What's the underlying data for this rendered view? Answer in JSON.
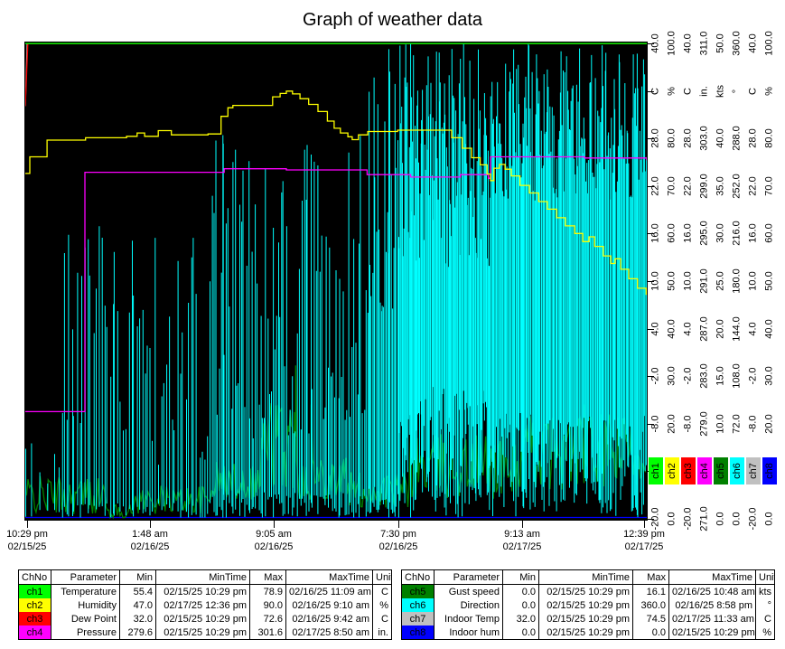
{
  "window": {
    "title": "Graph of weather data"
  },
  "chart_data": {
    "type": "line",
    "title": "Graph of weather data",
    "plot_bg": "#000000",
    "x_axis": {
      "ticks": [
        {
          "time": "10:29 pm",
          "date": "02/15/25",
          "frac": 0.003
        },
        {
          "time": "1:48 am",
          "date": "02/16/25",
          "frac": 0.2
        },
        {
          "time": "9:05 am",
          "date": "02/16/25",
          "frac": 0.4
        },
        {
          "time": "7:30 pm",
          "date": "02/16/25",
          "frac": 0.6
        },
        {
          "time": "9:13 am",
          "date": "02/17/25",
          "frac": 0.8
        },
        {
          "time": "12:39 pm",
          "date": "02/17/25",
          "frac": 0.996
        }
      ]
    },
    "right_axis": {
      "rows": 11,
      "unit_row_index": 1,
      "legend_row_index": 9,
      "columns": [
        {
          "channel": "ch1",
          "unit": "C",
          "color": "#00ff00",
          "tick_labels": [
            "40.0",
            "28.0",
            "22.0",
            "16.0",
            "10.0",
            "4.0",
            "-2.0",
            "-8.0",
            "-20.0"
          ]
        },
        {
          "channel": "ch2",
          "unit": "%",
          "color": "#ffff00",
          "tick_labels": [
            "100.0",
            "80.0",
            "70.0",
            "60.0",
            "50.0",
            "40.0",
            "30.0",
            "20.0",
            "0.0"
          ]
        },
        {
          "channel": "ch3",
          "unit": "C",
          "color": "#ff0000",
          "tick_labels": [
            "40.0",
            "28.0",
            "22.0",
            "16.0",
            "10.0",
            "4.0",
            "-2.0",
            "-8.0",
            "-20.0"
          ]
        },
        {
          "channel": "ch4",
          "unit": "in.",
          "color": "#ff00ff",
          "tick_labels": [
            "311.0",
            "303.0",
            "299.0",
            "295.0",
            "291.0",
            "287.0",
            "283.0",
            "279.0",
            "271.0"
          ]
        },
        {
          "channel": "ch5",
          "unit": "kts",
          "color": "#008000",
          "tick_labels": [
            "50.0",
            "40.0",
            "35.0",
            "30.0",
            "25.0",
            "20.0",
            "15.0",
            "10.0",
            "0.0"
          ]
        },
        {
          "channel": "ch6",
          "unit": "°",
          "color": "#00ffff",
          "tick_labels": [
            "360.0",
            "288.0",
            "252.0",
            "216.0",
            "180.0",
            "144.0",
            "108.0",
            "72.0",
            "0.0"
          ]
        },
        {
          "channel": "ch7",
          "unit": "C",
          "color": "#c0c0c0",
          "tick_labels": [
            "40.0",
            "28.0",
            "22.0",
            "16.0",
            "10.0",
            "4.0",
            "-2.0",
            "-8.0",
            "-20.0"
          ]
        },
        {
          "channel": "ch8",
          "unit": "%",
          "color": "#0000ff",
          "tick_labels": [
            "100.0",
            "80.0",
            "70.0",
            "60.0",
            "50.0",
            "40.0",
            "30.0",
            "20.0",
            "0.0"
          ]
        }
      ]
    },
    "series": [
      {
        "id": "ch8",
        "label": "Indoor hum",
        "unit": "%",
        "color": "#0000ff",
        "axis_min": 0,
        "axis_max": 100,
        "style": "line",
        "points": [
          [
            0,
            0
          ],
          [
            1,
            0
          ]
        ]
      },
      {
        "id": "ch7",
        "label": "Indoor Temp",
        "unit": "C",
        "color": "#c0c0c0",
        "axis_min": -20,
        "axis_max": 40,
        "style": "line",
        "points": [
          [
            0,
            32.0
          ],
          [
            0.003,
            74.5
          ],
          [
            1,
            74.5
          ]
        ]
      },
      {
        "id": "ch3",
        "label": "Dew Point",
        "unit": "C",
        "color": "#ff0000",
        "axis_min": -20,
        "axis_max": 40,
        "style": "line",
        "points": [
          [
            0,
            32.0
          ],
          [
            0.004,
            72.6
          ],
          [
            1,
            72.6
          ]
        ]
      },
      {
        "id": "ch5",
        "label": "Gust speed",
        "unit": "kts",
        "color": "#008000",
        "axis_min": 0,
        "axis_max": 50,
        "style": "noise",
        "noise_regions": [
          {
            "x0": 0.0,
            "x1": 0.13,
            "n": 60,
            "lo": 0.5,
            "hi": 4.5
          },
          {
            "x0": 0.13,
            "x1": 0.175,
            "n": 20,
            "lo": 0.0,
            "hi": 1.5
          },
          {
            "x0": 0.175,
            "x1": 0.3,
            "n": 55,
            "lo": 0.5,
            "hi": 3.5
          },
          {
            "x0": 0.3,
            "x1": 0.38,
            "n": 40,
            "lo": 2.0,
            "hi": 6.0
          },
          {
            "x0": 0.38,
            "x1": 0.44,
            "n": 35,
            "lo": 3.0,
            "hi": 13.0
          },
          {
            "x0": 0.44,
            "x1": 0.52,
            "n": 40,
            "lo": 2.0,
            "hi": 7.0
          },
          {
            "x0": 0.52,
            "x1": 0.62,
            "n": 45,
            "lo": 1.0,
            "hi": 5.0
          },
          {
            "x0": 0.62,
            "x1": 0.8,
            "n": 85,
            "lo": 2.0,
            "hi": 9.0
          },
          {
            "x0": 0.8,
            "x1": 1.0,
            "n": 95,
            "lo": 3.0,
            "hi": 11.0
          }
        ],
        "notable_spikes": [
          [
            0.435,
            16.1
          ],
          [
            0.46,
            12.0
          ],
          [
            0.9,
            12.0
          ]
        ]
      },
      {
        "id": "ch6",
        "label": "Direction",
        "unit": "°",
        "color": "#00ffff",
        "axis_min": 0,
        "axis_max": 360,
        "style": "spikes",
        "spike_regions": [
          {
            "x0": 0.0,
            "x1": 0.06,
            "n": 6,
            "lo": [
              0,
              8
            ],
            "hi": [
              15,
              60
            ]
          },
          {
            "x0": 0.06,
            "x1": 0.3,
            "n": 55,
            "lo": [
              0,
              12
            ],
            "hi": [
              40,
              230
            ]
          },
          {
            "x0": 0.3,
            "x1": 0.55,
            "n": 90,
            "lo": [
              0,
              20
            ],
            "hi": [
              60,
              290
            ]
          },
          {
            "x0": 0.55,
            "x1": 0.6,
            "n": 25,
            "lo": [
              0,
              25
            ],
            "hi": [
              150,
              340
            ]
          },
          {
            "x0": 0.6,
            "x1": 0.75,
            "n": 120,
            "lo": [
              0,
              100
            ],
            "hi": [
              190,
              360
            ]
          },
          {
            "x0": 0.75,
            "x1": 1.0,
            "n": 170,
            "lo": [
              0,
              80
            ],
            "hi": [
              240,
              360
            ]
          }
        ],
        "notable_spikes": [
          [
            0.318,
            0,
            290
          ],
          [
            0.06,
            0,
            80
          ],
          [
            0.585,
            0,
            355
          ],
          [
            0.62,
            0,
            360
          ]
        ]
      },
      {
        "id": "ch4",
        "label": "Pressure",
        "unit": "in.",
        "color": "#ff00ff",
        "axis_min": 271,
        "axis_max": 311,
        "style": "step",
        "points": [
          [
            0,
            280.0
          ],
          [
            0.094,
            280.0
          ],
          [
            0.096,
            300.1
          ],
          [
            0.13,
            300.1
          ],
          [
            0.32,
            300.4
          ],
          [
            0.42,
            300.3
          ],
          [
            0.55,
            299.9
          ],
          [
            0.62,
            299.7
          ],
          [
            0.7,
            299.9
          ],
          [
            0.745,
            299.6
          ],
          [
            0.7485,
            301.4
          ],
          [
            0.8,
            301.4
          ],
          [
            0.9,
            301.3
          ],
          [
            1,
            301.1
          ]
        ]
      },
      {
        "id": "ch2",
        "label": "Humidity",
        "unit": "%",
        "color": "#ffff00",
        "axis_min": 0,
        "axis_max": 100,
        "style": "step",
        "points": [
          [
            0,
            72.5
          ],
          [
            0.0073,
            76
          ],
          [
            0.035,
            79.5
          ],
          [
            0.097,
            80
          ],
          [
            0.163,
            80.3
          ],
          [
            0.18,
            81
          ],
          [
            0.192,
            80.3
          ],
          [
            0.214,
            81.5
          ],
          [
            0.235,
            80.6
          ],
          [
            0.294,
            80.8
          ],
          [
            0.315,
            84.5
          ],
          [
            0.326,
            86.3
          ],
          [
            0.334,
            86.8
          ],
          [
            0.388,
            86.8
          ],
          [
            0.398,
            88.6
          ],
          [
            0.41,
            89.3
          ],
          [
            0.42,
            89.8
          ],
          [
            0.43,
            89.2
          ],
          [
            0.442,
            88.2
          ],
          [
            0.456,
            87
          ],
          [
            0.471,
            85.5
          ],
          [
            0.486,
            83.5
          ],
          [
            0.497,
            82
          ],
          [
            0.507,
            81
          ],
          [
            0.519,
            80.2
          ],
          [
            0.526,
            79.6
          ],
          [
            0.536,
            80.6
          ],
          [
            0.551,
            81.3
          ],
          [
            0.599,
            81.6
          ],
          [
            0.671,
            81.6
          ],
          [
            0.686,
            80
          ],
          [
            0.703,
            77.8
          ],
          [
            0.718,
            75.8
          ],
          [
            0.732,
            74.3
          ],
          [
            0.743,
            72.4
          ],
          [
            0.7485,
            71
          ],
          [
            0.754,
            73.6
          ],
          [
            0.763,
            74.4
          ],
          [
            0.772,
            73.4
          ],
          [
            0.782,
            72
          ],
          [
            0.796,
            70
          ],
          [
            0.811,
            68.4
          ],
          [
            0.826,
            66.6
          ],
          [
            0.84,
            65
          ],
          [
            0.855,
            63.2
          ],
          [
            0.869,
            61.5
          ],
          [
            0.884,
            59.9
          ],
          [
            0.897,
            58.2
          ],
          [
            0.907,
            59.2
          ],
          [
            0.916,
            57.2
          ],
          [
            0.93,
            55.2
          ],
          [
            0.942,
            53.6
          ],
          [
            0.949,
            54.6
          ],
          [
            0.958,
            52.4
          ],
          [
            0.971,
            50.4
          ],
          [
            0.985,
            48.4
          ],
          [
            0.999,
            47
          ]
        ]
      },
      {
        "id": "ch1",
        "label": "Temperature",
        "unit": "C",
        "color": "#00ff00",
        "axis_min": -20,
        "axis_max": 40,
        "style": "line",
        "points": [
          [
            0,
            55.4
          ],
          [
            0.55,
            78.9
          ],
          [
            1,
            60.0
          ]
        ]
      }
    ]
  },
  "tables": {
    "columns": [
      "ChNo",
      "Parameter",
      "Min",
      "MinTime",
      "Max",
      "MaxTime",
      "Unit"
    ],
    "left": {
      "rows": [
        {
          "ch": "ch1",
          "color": "#00ff00",
          "parameter": "Temperature",
          "min": "55.4",
          "min_time": "02/15/25 10:29 pm",
          "max": "78.9",
          "max_time": "02/16/25 11:09 am",
          "unit": "C"
        },
        {
          "ch": "ch2",
          "color": "#ffff00",
          "parameter": "Humidity",
          "min": "47.0",
          "min_time": "02/17/25 12:36 pm",
          "max": "90.0",
          "max_time": "02/16/25 9:10 am",
          "unit": "%"
        },
        {
          "ch": "ch3",
          "color": "#ff0000",
          "parameter": "Dew Point",
          "min": "32.0",
          "min_time": "02/15/25 10:29 pm",
          "max": "72.6",
          "max_time": "02/16/25 9:42 am",
          "unit": "C"
        },
        {
          "ch": "ch4",
          "color": "#ff00ff",
          "parameter": "Pressure",
          "min": "279.6",
          "min_time": "02/15/25 10:29 pm",
          "max": "301.6",
          "max_time": "02/17/25 8:50 am",
          "unit": "in."
        }
      ]
    },
    "right": {
      "rows": [
        {
          "ch": "ch5",
          "color": "#008000",
          "parameter": "Gust speed",
          "min": "0.0",
          "min_time": "02/15/25 10:29 pm",
          "max": "16.1",
          "max_time": "02/16/25 10:48 am",
          "unit": "kts"
        },
        {
          "ch": "ch6",
          "color": "#00ffff",
          "parameter": "Direction",
          "min": "0.0",
          "min_time": "02/15/25 10:29 pm",
          "max": "360.0",
          "max_time": "02/16/25 8:58 pm",
          "unit": "°"
        },
        {
          "ch": "ch7",
          "color": "#c0c0c0",
          "parameter": "Indoor Temp",
          "min": "32.0",
          "min_time": "02/15/25 10:29 pm",
          "max": "74.5",
          "max_time": "02/17/25 11:33 am",
          "unit": "C"
        },
        {
          "ch": "ch8",
          "color": "#0000ff",
          "parameter": "Indoor hum",
          "min": "0.0",
          "min_time": "02/15/25 10:29 pm",
          "max": "0.0",
          "max_time": "02/15/25 10:29 pm",
          "unit": "%"
        }
      ]
    }
  }
}
